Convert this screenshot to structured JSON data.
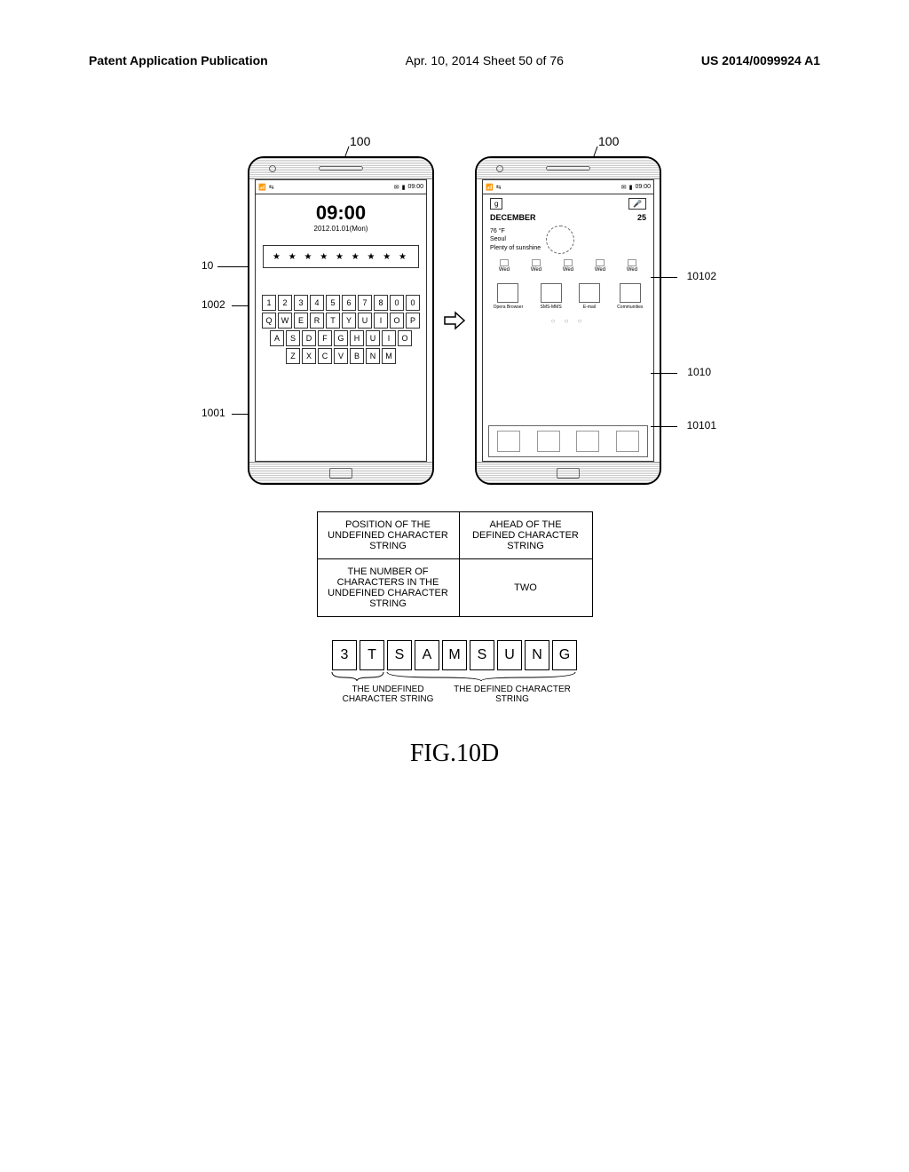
{
  "header": {
    "left": "Patent Application Publication",
    "center": "Apr. 10, 2014  Sheet 50 of 76",
    "right": "US 2014/0099924 A1"
  },
  "refs": {
    "r100": "100",
    "r10": "10",
    "r1002": "1002",
    "r1001": "1001",
    "r10102": "10102",
    "r1010": "1010",
    "r10101": "10101"
  },
  "phone1": {
    "status_time": "09:00",
    "clock_time": "09:00",
    "clock_date": "2012.01.01(Mon)",
    "password_mask": "★ ★ ★ ★ ★ ★ ★ ★ ★",
    "kb_row1": [
      "1",
      "2",
      "3",
      "4",
      "5",
      "6",
      "7",
      "8",
      "0",
      "0"
    ],
    "kb_row2": [
      "Q",
      "W",
      "E",
      "R",
      "T",
      "Y",
      "U",
      "I",
      "O",
      "P"
    ],
    "kb_row3": [
      "A",
      "S",
      "D",
      "F",
      "G",
      "H",
      "U",
      "I",
      "O"
    ],
    "kb_row4": [
      "Z",
      "X",
      "C",
      "V",
      "B",
      "N",
      "M"
    ]
  },
  "phone2": {
    "status_time": "09:00",
    "search_char": "g",
    "month": "DECEMBER",
    "day": "25",
    "temp": "76 °F",
    "city": "Seoul",
    "cond": "Plenty of sunshine",
    "forecast_days": [
      "Wed",
      "Wed",
      "Wed",
      "Wed",
      "Wed"
    ],
    "apps": [
      "Opera Browser",
      "SMS-MMS",
      "E-mail",
      "Communities"
    ]
  },
  "table": {
    "r1c1": "POSITION OF THE UNDEFINED CHARACTER STRING",
    "r1c2": "AHEAD OF THE DEFINED CHARACTER STRING",
    "r2c1": "THE NUMBER OF CHARACTERS IN THE UNDEFINED CHARACTER STRING",
    "r2c2": "TWO"
  },
  "chars": [
    "3",
    "T",
    "S",
    "A",
    "M",
    "S",
    "U",
    "N",
    "G"
  ],
  "char_labels": {
    "a": "THE UNDEFINED CHARACTER STRING",
    "b": "THE DEFINED CHARACTER STRING"
  },
  "figure_label": "FIG.10D",
  "colors": {
    "line": "#000000",
    "bg": "#ffffff"
  }
}
